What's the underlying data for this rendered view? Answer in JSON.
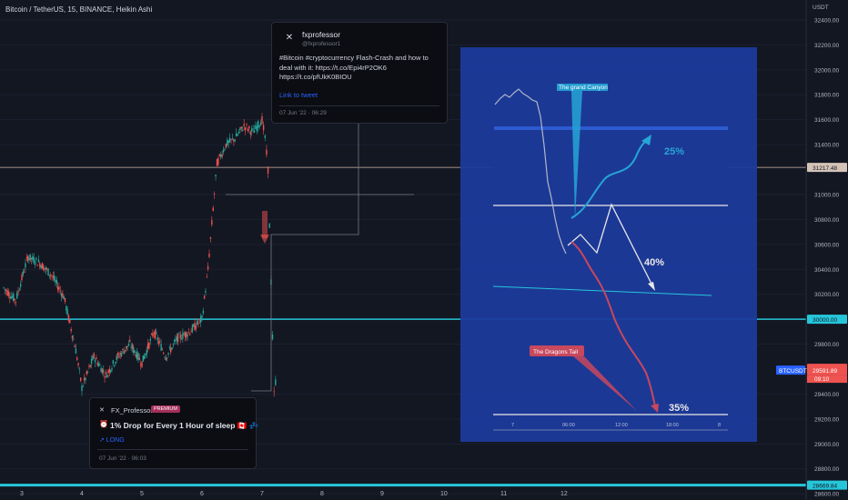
{
  "symbol_title": "Bitcoin / TetherUS, 15, BINANCE, Heikin Ashi",
  "currency": "USDT",
  "colors": {
    "background": "#131722",
    "up": "#26a69a",
    "down": "#ef5350",
    "panel": "#1c3a9c",
    "level": "#26c6da",
    "level_line": "#d4b8a8"
  },
  "tweet": {
    "avatar_icon": "chart-icon",
    "name": "fxprofessor",
    "handle": "@fxprofessor1",
    "text": "#Bitcoin #cryptocurrency Flash-Crash and how to deal with it: https://t.co/Epi4rP2OK6 https://t.co/pfUkK0BIOU",
    "link_label": "Link to tweet",
    "date": "07 Jun '22 · 06:29"
  },
  "idea": {
    "author": "FX_Professor",
    "badge": "PREMIUM",
    "title_icon": "alarm-clock-icon",
    "title": "1% Drop for Every 1 Hour of sleep 🇨🇦 💤",
    "direction": "↗ LONG",
    "date": "07 Jun '22 · 06:03"
  },
  "inset": {
    "label_grand_canyon": "The grand Canyon",
    "label_dragons_tail": "The Dragons Tail",
    "pct_25": "25%",
    "pct_40": "40%",
    "pct_35": "35%",
    "x_ticks": [
      "7",
      "06:00",
      "12:00",
      "18:00",
      "8"
    ]
  },
  "chart_data": {
    "type": "candlestick",
    "title": "Bitcoin / TetherUS, 15, BINANCE, Heikin Ashi",
    "x_ticks": [
      "3",
      "4",
      "5",
      "6",
      "7",
      "8",
      "9",
      "10",
      "11",
      "12"
    ],
    "y_ticks": [
      32400,
      32200,
      32000,
      31800,
      31600,
      31400,
      31000,
      30800,
      30600,
      30400,
      30200,
      29800,
      29400,
      29200,
      29000,
      28800,
      28600
    ],
    "ylim": [
      28550,
      32560
    ],
    "price_labels": [
      {
        "value": 31217.48,
        "text": "31217.48",
        "bg": "#d4c4b8",
        "fg": "#131722"
      },
      {
        "value": 30000,
        "text": "30000.00",
        "bg": "#26c6da",
        "fg": "#131722"
      },
      {
        "value": 29606.72,
        "text": "29606.72",
        "bg": "#ef5350",
        "fg": "#ffffff"
      },
      {
        "value": 29591.89,
        "text": "29591.89",
        "bg": "#ef5350",
        "fg": "#ffffff"
      },
      {
        "value": 28669.84,
        "text": "28669.84",
        "bg": "#26c6da",
        "fg": "#131722"
      }
    ],
    "countdown": "09:10",
    "ticker_tag": "BTCUSDT",
    "levels": [
      31217.48,
      30000,
      28669.84
    ],
    "series_close": [
      {
        "day": 2.7,
        "close": 30250
      },
      {
        "day": 2.9,
        "close": 30150
      },
      {
        "day": 3.1,
        "close": 30500
      },
      {
        "day": 3.3,
        "close": 30450
      },
      {
        "day": 3.5,
        "close": 30350
      },
      {
        "day": 3.7,
        "close": 30180
      },
      {
        "day": 3.9,
        "close": 29750
      },
      {
        "day": 4.0,
        "close": 29450
      },
      {
        "day": 4.2,
        "close": 29700
      },
      {
        "day": 4.4,
        "close": 29550
      },
      {
        "day": 4.6,
        "close": 29700
      },
      {
        "day": 4.8,
        "close": 29800
      },
      {
        "day": 5.0,
        "close": 29650
      },
      {
        "day": 5.2,
        "close": 29900
      },
      {
        "day": 5.4,
        "close": 29700
      },
      {
        "day": 5.6,
        "close": 29850
      },
      {
        "day": 5.8,
        "close": 29900
      },
      {
        "day": 6.0,
        "close": 30000
      },
      {
        "day": 6.1,
        "close": 30400
      },
      {
        "day": 6.25,
        "close": 31250
      },
      {
        "day": 6.4,
        "close": 31400
      },
      {
        "day": 6.55,
        "close": 31450
      },
      {
        "day": 6.7,
        "close": 31550
      },
      {
        "day": 6.85,
        "close": 31500
      },
      {
        "day": 7.0,
        "close": 31600
      },
      {
        "day": 7.05,
        "close": 31450
      },
      {
        "day": 7.1,
        "close": 31200
      },
      {
        "day": 7.15,
        "close": 30300
      },
      {
        "day": 7.2,
        "close": 29400
      },
      {
        "day": 7.25,
        "close": 29600
      }
    ]
  }
}
